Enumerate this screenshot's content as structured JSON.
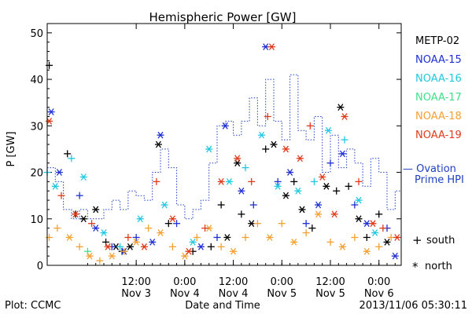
{
  "chart_data": {
    "type": "scatter",
    "title": "Hemispheric Power [GW]",
    "xlabel": "Date and Time",
    "ylabel": "P [GW]",
    "ylim": [
      0,
      52
    ],
    "y_ticks": [
      0,
      10,
      20,
      30,
      40,
      50
    ],
    "xlim": [
      "2013-11-02T14:00",
      "2013-11-06T05:30"
    ],
    "x_ticks": [
      {
        "time": "2013-11-03T12:00",
        "line1": "12:00",
        "line2": "Nov 3"
      },
      {
        "time": "2013-11-04T00:00",
        "line1": "0:00",
        "line2": "Nov 4"
      },
      {
        "time": "2013-11-04T12:00",
        "line1": "12:00",
        "line2": "Nov 4"
      },
      {
        "time": "2013-11-05T00:00",
        "line1": "0:00",
        "line2": "Nov 5"
      },
      {
        "time": "2013-11-05T12:00",
        "line1": "12:00",
        "line2": "Nov 5"
      },
      {
        "time": "2013-11-06T00:00",
        "line1": "0:00",
        "line2": "Nov 6"
      }
    ],
    "legend": {
      "placement": "right",
      "entries": [
        {
          "label": "METP-02",
          "color": "#000000"
        },
        {
          "label": "NOAA-15",
          "color": "#1f2fd6"
        },
        {
          "label": "NOAA-16",
          "color": "#20c8e0"
        },
        {
          "label": "NOAA-17",
          "color": "#3ee08a"
        },
        {
          "label": "NOAA-18",
          "color": "#f5a030"
        },
        {
          "label": "NOAA-19",
          "color": "#e03a1a"
        }
      ],
      "ovation_label_line1": "— Ovation",
      "ovation_label_line2": "Prime HPI",
      "ovation_color": "#2040c0",
      "marker_south_symbol": "+",
      "marker_south_label": "south",
      "marker_north_symbol": "*",
      "marker_north_label": "north"
    },
    "ovation_hpi": {
      "x": [
        "2013-11-02T14:00",
        "2013-11-02T16:00",
        "2013-11-02T18:00",
        "2013-11-02T20:00",
        "2013-11-02T22:00",
        "2013-11-03T00:00",
        "2013-11-03T02:00",
        "2013-11-03T04:00",
        "2013-11-03T06:00",
        "2013-11-03T08:00",
        "2013-11-03T10:00",
        "2013-11-03T12:00",
        "2013-11-03T14:00",
        "2013-11-03T16:00",
        "2013-11-03T18:00",
        "2013-11-03T20:00",
        "2013-11-03T22:00",
        "2013-11-04T00:00",
        "2013-11-04T02:00",
        "2013-11-04T04:00",
        "2013-11-04T06:00",
        "2013-11-04T08:00",
        "2013-11-04T10:00",
        "2013-11-04T12:00",
        "2013-11-04T14:00",
        "2013-11-04T16:00",
        "2013-11-04T18:00",
        "2013-11-04T20:00",
        "2013-11-04T22:00",
        "2013-11-05T00:00",
        "2013-11-05T02:00",
        "2013-11-05T04:00",
        "2013-11-05T06:00",
        "2013-11-05T08:00",
        "2013-11-05T10:00",
        "2013-11-05T12:00",
        "2013-11-05T14:00",
        "2013-11-05T16:00",
        "2013-11-05T18:00",
        "2013-11-05T20:00",
        "2013-11-05T22:00",
        "2013-11-06T00:00",
        "2013-11-06T02:00",
        "2013-11-06T04:00"
      ],
      "y": [
        21,
        18,
        12,
        10,
        12,
        10,
        10,
        12,
        14,
        12,
        16,
        15,
        14,
        20,
        25,
        21,
        13,
        10,
        12,
        14,
        22,
        30,
        31,
        28,
        31,
        36,
        30,
        40,
        31,
        27,
        41,
        29,
        27,
        32,
        20,
        28,
        21,
        25,
        22,
        17,
        23,
        20,
        12,
        16
      ]
    },
    "series": [
      {
        "name": "METP-02",
        "color": "#000000",
        "points": [
          [
            "2013-11-02T14:30",
            43,
            "+"
          ],
          [
            "2013-11-02T19:00",
            24,
            "+"
          ],
          [
            "2013-11-02T21:00",
            11,
            "+"
          ],
          [
            "2013-11-02T23:00",
            10,
            "*"
          ],
          [
            "2013-11-03T02:00",
            12,
            "*"
          ],
          [
            "2013-11-03T04:30",
            5,
            "+"
          ],
          [
            "2013-11-03T07:00",
            4,
            "*"
          ],
          [
            "2013-11-03T08:30",
            3,
            "+"
          ],
          [
            "2013-11-03T10:30",
            4,
            "*"
          ],
          [
            "2013-11-03T17:30",
            26,
            "*"
          ],
          [
            "2013-11-03T20:00",
            9,
            "+"
          ],
          [
            "2013-11-04T02:00",
            3,
            "+"
          ],
          [
            "2013-11-04T06:30",
            4,
            "+"
          ],
          [
            "2013-11-04T09:00",
            13,
            "+"
          ],
          [
            "2013-11-04T10:30",
            6,
            "*"
          ],
          [
            "2013-11-04T13:00",
            22,
            "*"
          ],
          [
            "2013-11-04T14:00",
            11,
            "+"
          ],
          [
            "2013-11-04T16:30",
            9,
            "*"
          ],
          [
            "2013-11-04T20:00",
            25,
            "+"
          ],
          [
            "2013-11-04T22:00",
            26,
            "*"
          ],
          [
            "2013-11-05T01:00",
            15,
            "*"
          ],
          [
            "2013-11-05T03:00",
            18,
            "+"
          ],
          [
            "2013-11-05T05:00",
            12,
            "*"
          ],
          [
            "2013-11-05T07:30",
            8,
            "+"
          ],
          [
            "2013-11-05T11:00",
            17,
            "*"
          ],
          [
            "2013-11-05T13:30",
            16,
            "+"
          ],
          [
            "2013-11-05T14:30",
            34,
            "*"
          ],
          [
            "2013-11-05T16:30",
            17,
            "+"
          ],
          [
            "2013-11-05T19:00",
            10,
            "*"
          ],
          [
            "2013-11-05T21:00",
            6,
            "+"
          ],
          [
            "2013-11-06T00:00",
            11,
            "+"
          ],
          [
            "2013-11-06T02:00",
            5,
            "*"
          ]
        ]
      },
      {
        "name": "NOAA-15",
        "color": "#1f2fd6",
        "points": [
          [
            "2013-11-02T15:00",
            33,
            "*"
          ],
          [
            "2013-11-02T17:00",
            20,
            "*"
          ],
          [
            "2013-11-02T22:00",
            15,
            "+"
          ],
          [
            "2013-11-03T02:00",
            8,
            "*"
          ],
          [
            "2013-11-03T06:00",
            4,
            "+"
          ],
          [
            "2013-11-03T09:00",
            3,
            "*"
          ],
          [
            "2013-11-03T12:00",
            6,
            "+"
          ],
          [
            "2013-11-03T16:00",
            5,
            "*"
          ],
          [
            "2013-11-03T18:00",
            28,
            "*"
          ],
          [
            "2013-11-03T22:00",
            9,
            "+"
          ],
          [
            "2013-11-04T04:00",
            4,
            "*"
          ],
          [
            "2013-11-04T08:00",
            6,
            "+"
          ],
          [
            "2013-11-04T10:00",
            30,
            "*"
          ],
          [
            "2013-11-04T14:00",
            16,
            "*"
          ],
          [
            "2013-11-04T17:00",
            13,
            "+"
          ],
          [
            "2013-11-04T20:00",
            47,
            "*"
          ],
          [
            "2013-11-04T23:00",
            18,
            "+"
          ],
          [
            "2013-11-05T02:00",
            20,
            "*"
          ],
          [
            "2013-11-05T06:00",
            9,
            "+"
          ],
          [
            "2013-11-05T09:00",
            13,
            "*"
          ],
          [
            "2013-11-05T12:00",
            22,
            "+"
          ],
          [
            "2013-11-05T15:00",
            24,
            "*"
          ],
          [
            "2013-11-05T18:00",
            13,
            "+"
          ],
          [
            "2013-11-05T21:00",
            9,
            "*"
          ],
          [
            "2013-11-06T02:00",
            8,
            "+"
          ],
          [
            "2013-11-06T04:00",
            2,
            "*"
          ]
        ]
      },
      {
        "name": "NOAA-16",
        "color": "#20c8e0",
        "points": [
          [
            "2013-11-02T14:00",
            20,
            "+"
          ],
          [
            "2013-11-02T16:00",
            17,
            "*"
          ],
          [
            "2013-11-02T20:00",
            23,
            "+"
          ],
          [
            "2013-11-02T23:00",
            19,
            "*"
          ],
          [
            "2013-11-03T04:00",
            7,
            "*"
          ],
          [
            "2013-11-03T08:00",
            4,
            "+"
          ],
          [
            "2013-11-03T13:00",
            10,
            "*"
          ],
          [
            "2013-11-03T19:00",
            13,
            "*"
          ],
          [
            "2013-11-04T02:00",
            5,
            "*"
          ],
          [
            "2013-11-04T06:00",
            25,
            "*"
          ],
          [
            "2013-11-04T11:00",
            18,
            "*"
          ],
          [
            "2013-11-04T15:00",
            21,
            "+"
          ],
          [
            "2013-11-04T19:00",
            28,
            "*"
          ],
          [
            "2013-11-04T23:00",
            17,
            "*"
          ],
          [
            "2013-11-05T04:00",
            16,
            "*"
          ],
          [
            "2013-11-05T08:00",
            18,
            "+"
          ],
          [
            "2013-11-05T11:30",
            29,
            "*"
          ],
          [
            "2013-11-05T15:30",
            27,
            "+"
          ],
          [
            "2013-11-05T19:00",
            14,
            "*"
          ],
          [
            "2013-11-05T23:00",
            7,
            "*"
          ]
        ]
      },
      {
        "name": "NOAA-17",
        "color": "#3ee08a",
        "points": [
          [
            "2013-11-03T00:00",
            3,
            "+"
          ]
        ]
      },
      {
        "name": "NOAA-18",
        "color": "#f5a030",
        "points": [
          [
            "2013-11-02T14:30",
            6,
            "+"
          ],
          [
            "2013-11-02T16:30",
            8,
            "+"
          ],
          [
            "2013-11-02T19:30",
            6,
            "*"
          ],
          [
            "2013-11-02T22:00",
            4,
            "+"
          ],
          [
            "2013-11-03T00:30",
            2,
            "*"
          ],
          [
            "2013-11-03T03:00",
            1,
            "+"
          ],
          [
            "2013-11-03T06:00",
            2,
            "*"
          ],
          [
            "2013-11-03T09:00",
            3,
            "+"
          ],
          [
            "2013-11-03T12:00",
            5,
            "*"
          ],
          [
            "2013-11-03T15:00",
            8,
            "+"
          ],
          [
            "2013-11-03T18:00",
            7,
            "*"
          ],
          [
            "2013-11-03T21:00",
            4,
            "+"
          ],
          [
            "2013-11-04T00:00",
            2,
            "*"
          ],
          [
            "2013-11-04T03:00",
            6,
            "+"
          ],
          [
            "2013-11-04T06:00",
            8,
            "*"
          ],
          [
            "2013-11-04T09:00",
            4,
            "+"
          ],
          [
            "2013-11-04T12:00",
            3,
            "*"
          ],
          [
            "2013-11-04T15:00",
            6,
            "+"
          ],
          [
            "2013-11-04T18:00",
            9,
            "+"
          ],
          [
            "2013-11-04T21:00",
            6,
            "*"
          ],
          [
            "2013-11-05T00:00",
            9,
            "+"
          ],
          [
            "2013-11-05T03:00",
            5,
            "*"
          ],
          [
            "2013-11-05T06:00",
            7,
            "+"
          ],
          [
            "2013-11-05T09:00",
            11,
            "*"
          ],
          [
            "2013-11-05T12:00",
            5,
            "+"
          ],
          [
            "2013-11-05T15:00",
            4,
            "*"
          ],
          [
            "2013-11-05T18:00",
            6,
            "+"
          ],
          [
            "2013-11-05T21:00",
            3,
            "*"
          ],
          [
            "2013-11-06T00:00",
            4,
            "+"
          ],
          [
            "2013-11-06T03:00",
            6,
            "+"
          ]
        ]
      },
      {
        "name": "NOAA-19",
        "color": "#e03a1a",
        "points": [
          [
            "2013-11-02T14:30",
            31,
            "*"
          ],
          [
            "2013-11-02T17:30",
            15,
            "+"
          ],
          [
            "2013-11-02T21:00",
            11,
            "*"
          ],
          [
            "2013-11-03T01:00",
            9,
            "+"
          ],
          [
            "2013-11-03T05:00",
            4,
            "*"
          ],
          [
            "2013-11-03T10:00",
            6,
            "+"
          ],
          [
            "2013-11-03T14:00",
            4,
            "*"
          ],
          [
            "2013-11-03T17:00",
            18,
            "+"
          ],
          [
            "2013-11-03T21:00",
            10,
            "*"
          ],
          [
            "2013-11-04T01:00",
            3,
            "*"
          ],
          [
            "2013-11-04T05:00",
            8,
            "+"
          ],
          [
            "2013-11-04T09:00",
            18,
            "*"
          ],
          [
            "2013-11-04T13:00",
            23,
            "*"
          ],
          [
            "2013-11-04T16:30",
            18,
            "+"
          ],
          [
            "2013-11-04T20:30",
            32,
            "+"
          ],
          [
            "2013-11-04T21:30",
            47,
            "*"
          ],
          [
            "2013-11-05T01:00",
            25,
            "*"
          ],
          [
            "2013-11-05T04:30",
            23,
            "*"
          ],
          [
            "2013-11-05T07:00",
            30,
            "+"
          ],
          [
            "2013-11-05T10:00",
            19,
            "*"
          ],
          [
            "2013-11-05T13:00",
            11,
            "*"
          ],
          [
            "2013-11-05T15:30",
            32,
            "*"
          ],
          [
            "2013-11-05T19:00",
            18,
            "+"
          ],
          [
            "2013-11-05T22:30",
            9,
            "*"
          ],
          [
            "2013-11-06T01:00",
            8,
            "+"
          ],
          [
            "2013-11-06T04:30",
            6,
            "*"
          ]
        ]
      }
    ]
  },
  "footer": {
    "plot_credit": "Plot: CCMC",
    "timestamp": "2013/11/06 05:30:11"
  }
}
